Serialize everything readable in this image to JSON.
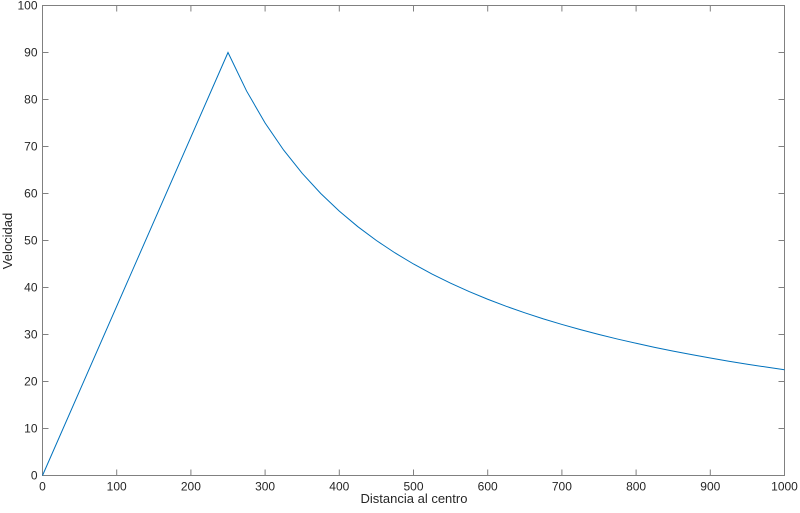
{
  "chart_data": {
    "type": "line",
    "title": "",
    "xlabel": "Distancia al centro",
    "ylabel": "Velocidad",
    "xlim": [
      0,
      1000
    ],
    "ylim": [
      0,
      100
    ],
    "xticks": [
      0,
      100,
      200,
      300,
      400,
      500,
      600,
      700,
      800,
      900,
      1000
    ],
    "yticks": [
      0,
      10,
      20,
      30,
      40,
      50,
      60,
      70,
      80,
      90,
      100
    ],
    "grid": false,
    "box": true,
    "series": [
      {
        "color": "#0072BD",
        "x": [
          0,
          250,
          275,
          300,
          325,
          350,
          375,
          400,
          425,
          450,
          475,
          500,
          525,
          550,
          575,
          600,
          625,
          650,
          675,
          700,
          725,
          750,
          775,
          800,
          825,
          850,
          875,
          900,
          925,
          950,
          975,
          1000
        ],
        "y": [
          0,
          90,
          81.82,
          75,
          69.23,
          64.29,
          60,
          56.25,
          52.94,
          50,
          47.37,
          45,
          42.86,
          40.91,
          39.13,
          37.5,
          36,
          34.62,
          33.33,
          32.14,
          31.03,
          30,
          29.03,
          28.13,
          27.27,
          26.47,
          25.71,
          25,
          24.32,
          23.68,
          23.08,
          22.5
        ]
      }
    ]
  }
}
